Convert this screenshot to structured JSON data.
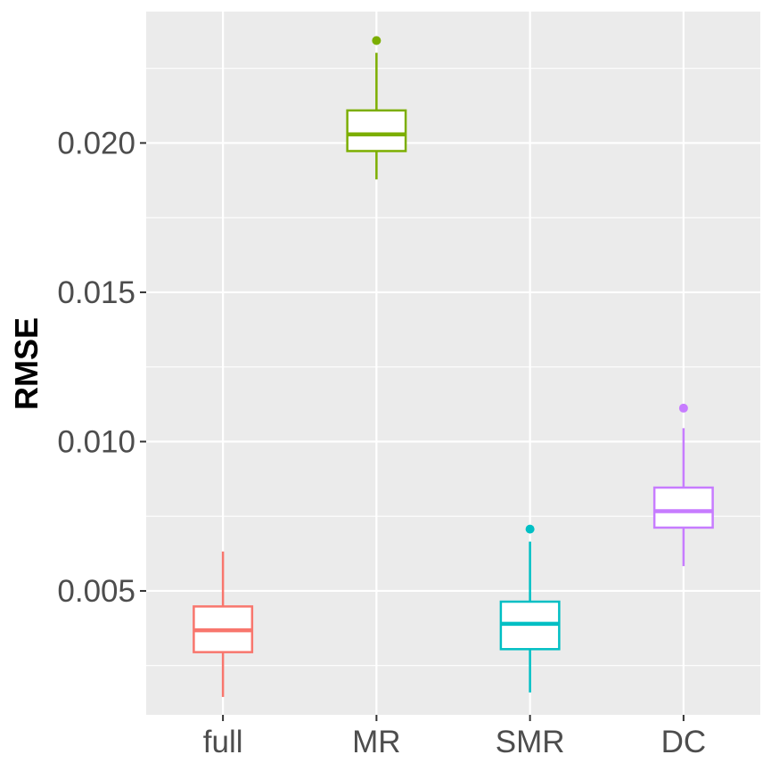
{
  "chart_data": {
    "type": "boxplot",
    "title": "",
    "xlabel": "",
    "ylabel": "RMSE",
    "categories": [
      "full",
      "MR",
      "SMR",
      "DC"
    ],
    "ylim": [
      0.00085,
      0.0244
    ],
    "yticks": [
      0.005,
      0.01,
      0.015,
      0.02
    ],
    "ytick_labels": [
      "0.005",
      "0.010",
      "0.015",
      "0.020"
    ],
    "grid": true,
    "legend": "none",
    "series": [
      {
        "name": "full",
        "color": "#F8766D",
        "whisker_low": 0.00145,
        "q1": 0.00295,
        "median": 0.00368,
        "q3": 0.00448,
        "whisker_high": 0.00632,
        "outliers": []
      },
      {
        "name": "MR",
        "color": "#7CAE00",
        "whisker_low": 0.01878,
        "q1": 0.01973,
        "median": 0.02029,
        "q3": 0.02109,
        "whisker_high": 0.02302,
        "outliers": [
          0.02343
        ]
      },
      {
        "name": "SMR",
        "color": "#00BFC4",
        "whisker_low": 0.0016,
        "q1": 0.00305,
        "median": 0.0039,
        "q3": 0.00464,
        "whisker_high": 0.00665,
        "outliers": [
          0.00707
        ]
      },
      {
        "name": "DC",
        "color": "#C77CFF",
        "whisker_low": 0.00583,
        "q1": 0.00712,
        "median": 0.00767,
        "q3": 0.00846,
        "whisker_high": 0.01045,
        "outliers": [
          0.01112
        ]
      }
    ]
  }
}
